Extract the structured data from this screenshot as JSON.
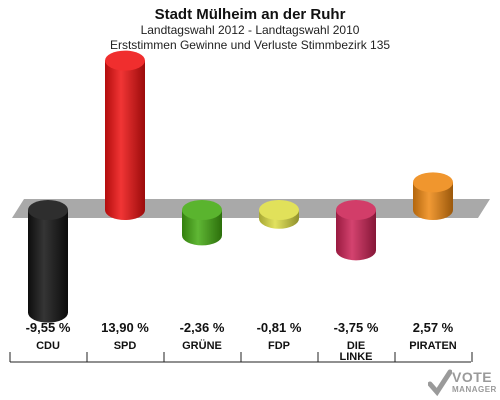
{
  "header": {
    "title": "Stadt Mülheim an der Ruhr",
    "subtitle": "Landtagswahl 2012 - Landtagswahl 2010",
    "subtitle2": "Erststimmen Gewinne und Verluste Stimmbezirk 135"
  },
  "logo": {
    "line1": "VOTE",
    "line2": "MANAGER"
  },
  "chart_data": {
    "type": "bar",
    "title": "Stadt Mülheim an der Ruhr",
    "subtitle": "Landtagswahl 2012 - Landtagswahl 2010",
    "subtitle2": "Erststimmen Gewinne und Verluste Stimmbezirk 135",
    "categories": [
      "CDU",
      "SPD",
      "GRÜNE",
      "FDP",
      "DIE LINKE",
      "PIRATEN"
    ],
    "values": [
      -9.55,
      13.9,
      -2.36,
      -0.81,
      -3.75,
      2.57
    ],
    "value_labels": [
      "-9,55 %",
      "13,90 %",
      "-2,36 %",
      "-0,81 %",
      "-3,75 %",
      "2,57 %"
    ],
    "colors": [
      "#111111",
      "#ee1111",
      "#44aa11",
      "#dddd44",
      "#cc2255",
      "#ee8811"
    ],
    "ylim": [
      -10,
      14
    ],
    "grid": false,
    "legend": "none"
  }
}
